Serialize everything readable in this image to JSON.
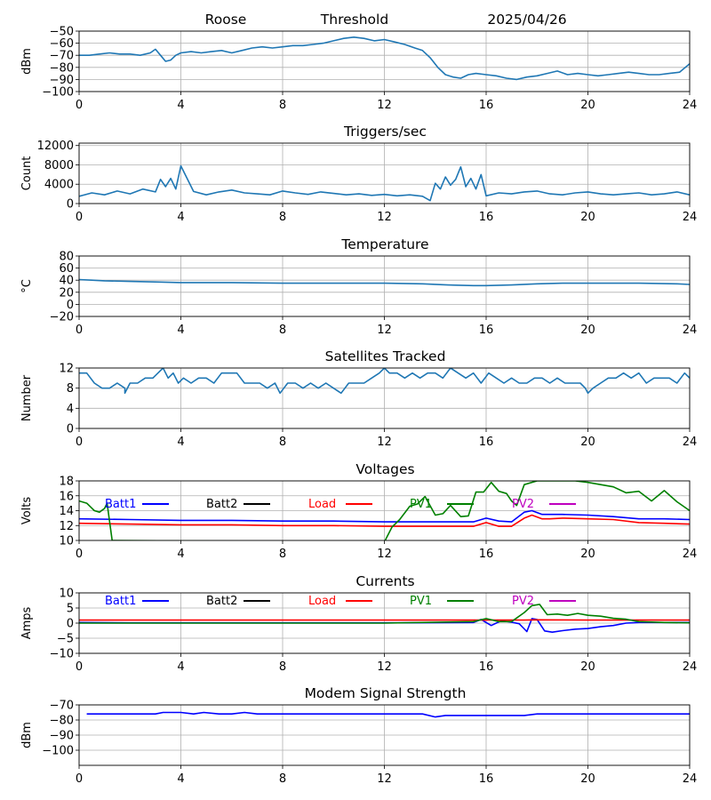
{
  "header": {
    "station": "Roose",
    "label": "Threshold",
    "date": "2025/04/26"
  },
  "chart_data": [
    {
      "id": "signal",
      "type": "line",
      "title": "",
      "xlabel": "",
      "ylabel": "dBm",
      "xlim": [
        0,
        24
      ],
      "ylim": [
        -100,
        -50
      ],
      "xticks": [
        "0",
        "4",
        "8",
        "12",
        "16",
        "20",
        "24"
      ],
      "yticks": [
        -100,
        -90,
        -80,
        -70,
        -60,
        -50
      ],
      "grid": true,
      "series": [
        {
          "color": "#1f77b4",
          "x": [
            0,
            0.4,
            0.8,
            1.2,
            1.6,
            2.0,
            2.4,
            2.8,
            3.0,
            3.2,
            3.4,
            3.6,
            3.8,
            4.0,
            4.4,
            4.8,
            5.2,
            5.6,
            6.0,
            6.4,
            6.8,
            7.2,
            7.6,
            8.0,
            8.4,
            8.8,
            9.2,
            9.6,
            10.0,
            10.4,
            10.8,
            11.2,
            11.6,
            12.0,
            12.4,
            12.8,
            13.2,
            13.5,
            13.8,
            14.1,
            14.4,
            14.7,
            15.0,
            15.3,
            15.6,
            16.0,
            16.4,
            16.8,
            17.2,
            17.6,
            18.0,
            18.4,
            18.8,
            19.2,
            19.6,
            20.0,
            20.4,
            20.8,
            21.2,
            21.6,
            22.0,
            22.4,
            22.8,
            23.2,
            23.6,
            24.0
          ],
          "y": [
            -70,
            -70,
            -69,
            -68,
            -69,
            -69,
            -70,
            -68,
            -65,
            -70,
            -75,
            -74,
            -70,
            -68,
            -67,
            -68,
            -67,
            -66,
            -68,
            -66,
            -64,
            -63,
            -64,
            -63,
            -62,
            -62,
            -61,
            -60,
            -58,
            -56,
            -55,
            -56,
            -58,
            -57,
            -59,
            -61,
            -64,
            -66,
            -72,
            -80,
            -86,
            -88,
            -89,
            -86,
            -85,
            -86,
            -87,
            -89,
            -90,
            -88,
            -87,
            -85,
            -83,
            -86,
            -85,
            -86,
            -87,
            -86,
            -85,
            -84,
            -85,
            -86,
            -86,
            -85,
            -84,
            -77
          ]
        }
      ]
    },
    {
      "id": "triggers",
      "type": "line",
      "title": "Triggers/sec",
      "xlabel": "",
      "ylabel": "Count",
      "xlim": [
        0,
        24
      ],
      "ylim": [
        0,
        12500
      ],
      "xticks": [
        "0",
        "4",
        "8",
        "12",
        "16",
        "20",
        "24"
      ],
      "yticks": [
        0,
        4000,
        8000,
        12000
      ],
      "grid": true,
      "series": [
        {
          "color": "#1f77b4",
          "x": [
            0,
            0.5,
            1.0,
            1.5,
            2.0,
            2.5,
            3.0,
            3.2,
            3.4,
            3.6,
            3.8,
            4.0,
            4.5,
            5.0,
            5.5,
            6.0,
            6.5,
            7.0,
            7.5,
            8.0,
            8.5,
            9.0,
            9.5,
            10.0,
            10.5,
            11.0,
            11.5,
            12.0,
            12.5,
            13.0,
            13.5,
            13.8,
            14.0,
            14.2,
            14.4,
            14.6,
            14.8,
            15.0,
            15.2,
            15.4,
            15.6,
            15.8,
            16.0,
            16.5,
            17.0,
            17.5,
            18.0,
            18.5,
            19.0,
            19.5,
            20.0,
            20.5,
            21.0,
            21.5,
            22.0,
            22.5,
            23.0,
            23.5,
            24.0
          ],
          "y": [
            1500,
            2200,
            1800,
            2600,
            2000,
            3000,
            2400,
            5000,
            3500,
            5200,
            3000,
            7800,
            2500,
            1800,
            2400,
            2800,
            2200,
            2000,
            1800,
            2600,
            2200,
            1900,
            2400,
            2100,
            1800,
            2000,
            1700,
            1900,
            1600,
            1800,
            1500,
            600,
            4200,
            3000,
            5500,
            3800,
            5000,
            7600,
            3500,
            5200,
            3000,
            6000,
            1600,
            2200,
            2000,
            2400,
            2600,
            2000,
            1800,
            2200,
            2400,
            2000,
            1800,
            2000,
            2200,
            1800,
            2000,
            2400,
            1800
          ]
        }
      ]
    },
    {
      "id": "temperature",
      "type": "line",
      "title": "Temperature",
      "xlabel": "",
      "ylabel": "°C",
      "xlim": [
        0,
        24
      ],
      "ylim": [
        -20,
        80
      ],
      "xticks": [
        "0",
        "4",
        "8",
        "12",
        "16",
        "20",
        "24"
      ],
      "yticks": [
        -20,
        0,
        20,
        40,
        60,
        80
      ],
      "grid": true,
      "series": [
        {
          "color": "#1f77b4",
          "x": [
            0,
            0.5,
            1.0,
            2.0,
            3.0,
            4.0,
            6.0,
            8.0,
            10.0,
            12.0,
            13.5,
            14.5,
            15.5,
            16.0,
            17.0,
            18.0,
            19.0,
            20.0,
            22.0,
            23.5,
            24.0
          ],
          "y": [
            41,
            40,
            39,
            38,
            37,
            36,
            36,
            35,
            35,
            35,
            34,
            32,
            31,
            31,
            32,
            34,
            35,
            35,
            35,
            34,
            33
          ]
        }
      ]
    },
    {
      "id": "satellites",
      "type": "line",
      "title": "Satellites Tracked",
      "xlabel": "",
      "ylabel": "Number",
      "xlim": [
        0,
        24
      ],
      "ylim": [
        0,
        12
      ],
      "xticks": [
        "0",
        "4",
        "8",
        "12",
        "16",
        "20",
        "24"
      ],
      "yticks": [
        0,
        4,
        8,
        12
      ],
      "grid": true,
      "series": [
        {
          "color": "#1f77b4",
          "x": [
            0,
            0.3,
            0.6,
            0.9,
            1.2,
            1.5,
            1.8,
            1.8,
            2.0,
            2.3,
            2.6,
            2.9,
            3.1,
            3.3,
            3.5,
            3.7,
            3.9,
            4.1,
            4.4,
            4.7,
            5.0,
            5.3,
            5.6,
            5.9,
            6.2,
            6.5,
            6.8,
            7.1,
            7.4,
            7.7,
            7.9,
            8.2,
            8.5,
            8.8,
            9.1,
            9.4,
            9.7,
            10.0,
            10.3,
            10.6,
            10.9,
            11.2,
            11.5,
            11.8,
            12.0,
            12.2,
            12.5,
            12.8,
            13.1,
            13.4,
            13.7,
            14.0,
            14.3,
            14.6,
            14.9,
            15.2,
            15.5,
            15.8,
            16.1,
            16.4,
            16.7,
            17.0,
            17.3,
            17.6,
            17.9,
            18.2,
            18.5,
            18.8,
            19.1,
            19.4,
            19.7,
            19.9,
            20.0,
            20.2,
            20.5,
            20.8,
            21.1,
            21.4,
            21.7,
            22.0,
            22.3,
            22.6,
            22.9,
            23.2,
            23.5,
            23.8,
            24.0
          ],
          "y": [
            11,
            11,
            9,
            8,
            8,
            9,
            8,
            7,
            9,
            9,
            10,
            10,
            11,
            12,
            10,
            11,
            9,
            10,
            9,
            10,
            10,
            9,
            11,
            11,
            11,
            9,
            9,
            9,
            8,
            9,
            7,
            9,
            9,
            8,
            9,
            8,
            9,
            8,
            7,
            9,
            9,
            9,
            10,
            11,
            12,
            11,
            11,
            10,
            11,
            10,
            11,
            11,
            10,
            12,
            11,
            10,
            11,
            9,
            11,
            10,
            9,
            10,
            9,
            9,
            10,
            10,
            9,
            10,
            9,
            9,
            9,
            8,
            7,
            8,
            9,
            10,
            10,
            11,
            10,
            11,
            9,
            10,
            10,
            10,
            9,
            11,
            10
          ]
        }
      ]
    },
    {
      "id": "voltages",
      "type": "line",
      "title": "Voltages",
      "xlabel": "",
      "ylabel": "Volts",
      "xlim": [
        0,
        24
      ],
      "ylim": [
        10,
        18
      ],
      "xticks": [
        "0",
        "4",
        "8",
        "12",
        "16",
        "20",
        "24"
      ],
      "yticks": [
        10,
        12,
        14,
        16,
        18
      ],
      "grid": true,
      "legend": "top",
      "series": [
        {
          "name": "Batt1",
          "color": "#0000ff",
          "x": [
            0,
            2,
            4,
            6,
            8,
            10,
            12,
            14,
            15.5,
            16.0,
            16.5,
            17.0,
            17.5,
            17.8,
            18.2,
            18.5,
            19.0,
            20.0,
            21.0,
            22.0,
            23.0,
            24.0
          ],
          "y": [
            12.9,
            12.8,
            12.7,
            12.7,
            12.6,
            12.6,
            12.5,
            12.5,
            12.5,
            13.0,
            12.6,
            12.5,
            13.8,
            14.0,
            13.5,
            13.5,
            13.5,
            13.4,
            13.2,
            12.9,
            12.9,
            12.8
          ]
        },
        {
          "name": "Batt2",
          "color": "#000000",
          "x": [],
          "y": []
        },
        {
          "name": "Load",
          "color": "#ff0000",
          "x": [
            0,
            2,
            4,
            6,
            8,
            10,
            12,
            14,
            15.5,
            16.0,
            16.5,
            17.0,
            17.5,
            17.8,
            18.2,
            18.5,
            19.0,
            20.0,
            21.0,
            22.0,
            23.0,
            24.0
          ],
          "y": [
            12.3,
            12.2,
            12.1,
            12.1,
            12.0,
            12.0,
            11.9,
            11.9,
            11.9,
            12.4,
            11.9,
            11.9,
            13.0,
            13.4,
            12.9,
            12.9,
            13.0,
            12.9,
            12.8,
            12.4,
            12.3,
            12.2
          ]
        },
        {
          "name": "PV1",
          "color": "#008000",
          "x": [
            0,
            0.3,
            0.6,
            0.8,
            1.0,
            1.1,
            1.3,
            12.0,
            12.3,
            12.6,
            13.0,
            13.3,
            13.6,
            14.0,
            14.3,
            14.6,
            15.0,
            15.3,
            15.6,
            15.9,
            16.2,
            16.5,
            16.8,
            17.0,
            17.2,
            17.5,
            18.0,
            18.5,
            19.0,
            19.5,
            20.0,
            20.5,
            21.0,
            21.5,
            22.0,
            22.5,
            23.0,
            23.5,
            24.0
          ],
          "y": [
            15.3,
            15.0,
            14.0,
            13.8,
            14.3,
            15.0,
            10.0,
            9.8,
            11.8,
            12.8,
            14.6,
            14.9,
            15.9,
            13.4,
            13.6,
            14.7,
            13.2,
            13.3,
            16.5,
            16.5,
            17.8,
            16.6,
            16.3,
            15.3,
            14.7,
            17.5,
            18.0,
            18.0,
            18.0,
            18.0,
            17.8,
            17.5,
            17.2,
            16.4,
            16.6,
            15.3,
            16.7,
            15.2,
            14.0
          ]
        },
        {
          "name": "PV2",
          "color": "#bf00bf",
          "x": [],
          "y": []
        }
      ]
    },
    {
      "id": "currents",
      "type": "line",
      "title": "Currents",
      "xlabel": "",
      "ylabel": "Amps",
      "xlim": [
        0,
        24
      ],
      "ylim": [
        -10,
        10
      ],
      "xticks": [
        "0",
        "4",
        "8",
        "12",
        "16",
        "20",
        "24"
      ],
      "yticks": [
        -10,
        -5,
        0,
        5,
        10
      ],
      "grid": true,
      "legend": "top",
      "series": [
        {
          "name": "Batt1",
          "color": "#0000ff",
          "x": [
            0,
            2,
            4,
            8,
            12,
            15.5,
            15.8,
            16.2,
            16.6,
            17.0,
            17.3,
            17.6,
            17.8,
            18.0,
            18.3,
            18.6,
            19.0,
            19.5,
            20.0,
            20.5,
            21.0,
            21.5,
            22.0,
            23.0,
            24.0
          ],
          "y": [
            0.2,
            0.1,
            0.1,
            0.1,
            0.1,
            0.2,
            1.2,
            -0.8,
            0.8,
            0.3,
            -0.2,
            -2.8,
            1.5,
            1.2,
            -2.6,
            -3.0,
            -2.5,
            -2.0,
            -1.8,
            -1.2,
            -0.8,
            0.0,
            0.2,
            0.2,
            0.2
          ]
        },
        {
          "name": "Batt2",
          "color": "#000000",
          "x": [],
          "y": []
        },
        {
          "name": "Load",
          "color": "#ff0000",
          "x": [
            0,
            4,
            8,
            12,
            16,
            17.5,
            18.0,
            20.0,
            24.0
          ],
          "y": [
            1.0,
            1.0,
            1.0,
            1.0,
            1.0,
            1.0,
            1.1,
            1.0,
            1.0
          ]
        },
        {
          "name": "PV1",
          "color": "#008000",
          "x": [
            0,
            4,
            8,
            12,
            15.5,
            16.0,
            16.5,
            17.0,
            17.5,
            17.8,
            18.1,
            18.4,
            18.8,
            19.2,
            19.6,
            20.0,
            20.5,
            21.0,
            21.5,
            22.0,
            23.0,
            24.0
          ],
          "y": [
            0.0,
            0.0,
            0.0,
            0.0,
            0.5,
            1.5,
            0.5,
            0.5,
            3.5,
            5.8,
            6.2,
            2.8,
            3.0,
            2.6,
            3.2,
            2.6,
            2.3,
            1.6,
            1.3,
            0.5,
            0.2,
            0.1
          ]
        },
        {
          "name": "PV2",
          "color": "#bf00bf",
          "x": [],
          "y": []
        }
      ]
    },
    {
      "id": "modem",
      "type": "line",
      "title": "Modem Signal Strength",
      "xlabel": "",
      "ylabel": "dBm",
      "xlim": [
        0,
        24
      ],
      "ylim": [
        -110,
        -70
      ],
      "xticks": [
        "0",
        "4",
        "8",
        "12",
        "16",
        "20",
        "24"
      ],
      "yticks": [
        -100,
        -90,
        -80,
        -70
      ],
      "grid": true,
      "series": [
        {
          "color": "#0000ff",
          "x": [
            0.3,
            1,
            2,
            3,
            3.3,
            4,
            4.5,
            4.9,
            5.5,
            6,
            6.5,
            7,
            8,
            9,
            10,
            11,
            12,
            13,
            13.5,
            14,
            14.4,
            15,
            16,
            17,
            17.5,
            18,
            19,
            20,
            21,
            22,
            23,
            24
          ],
          "y": [
            -76,
            -76,
            -76,
            -76,
            -75,
            -75,
            -76,
            -75,
            -76,
            -76,
            -75,
            -76,
            -76,
            -76,
            -76,
            -76,
            -76,
            -76,
            -76,
            -78,
            -77,
            -77,
            -77,
            -77,
            -77,
            -76,
            -76,
            -76,
            -76,
            -76,
            -76,
            -76
          ]
        }
      ]
    }
  ]
}
